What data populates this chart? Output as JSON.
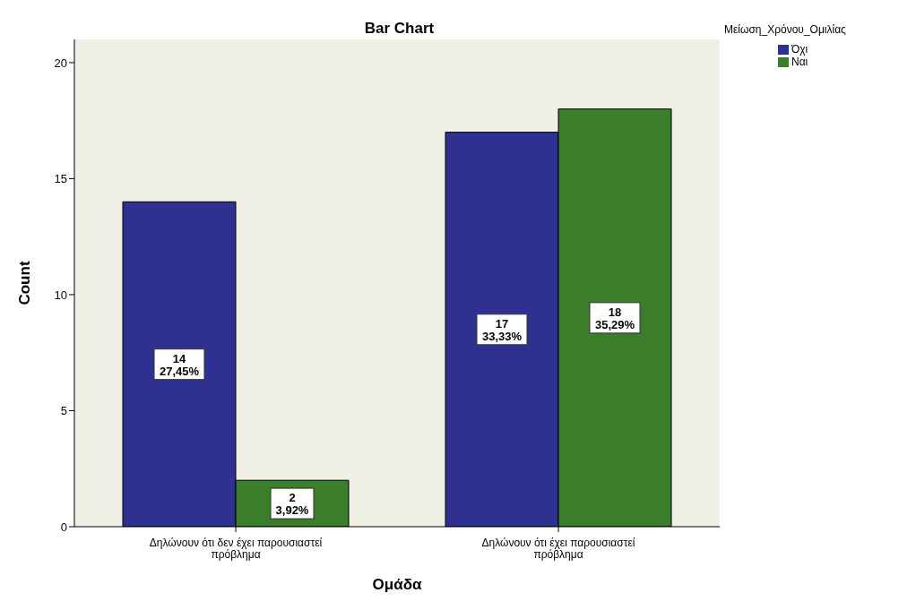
{
  "chart_data": {
    "type": "bar",
    "title": "Bar Chart",
    "xlabel": "Ομάδα",
    "ylabel": "Count",
    "legend_title": "Μείωση_Χρόνου_Ομιλίας",
    "categories": [
      "Δηλώνουν ότι δεν έχει παρουσιαστεί πρόβλημα",
      "Δηλώνουν ότι έχει παρουσιαστεί πρόβλημα"
    ],
    "series": [
      {
        "name": "Όχι",
        "color": "#2f3190",
        "values": [
          14,
          17
        ],
        "value_labels": [
          "14\n27,45%",
          "17\n33,33%"
        ]
      },
      {
        "name": "Ναι",
        "color": "#3a7d2a",
        "values": [
          2,
          18
        ],
        "value_labels": [
          "2\n3,92%",
          "18\n35,29%"
        ]
      }
    ],
    "ylim": [
      0,
      21
    ],
    "yticks": [
      0,
      5,
      10,
      15,
      20
    ],
    "grid": false,
    "legend": "top right"
  }
}
